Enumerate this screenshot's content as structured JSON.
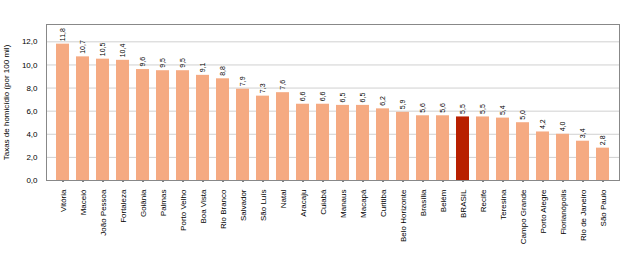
{
  "chart_data": {
    "type": "bar",
    "categories": [
      "Vitória",
      "Maceió",
      "João Pessoa",
      "Fortaleza",
      "Goiânia",
      "Palmas",
      "Porto Velho",
      "Boa Vista",
      "Rio Branco",
      "Salvador",
      "São Luís",
      "Natal",
      "Aracaju",
      "Cuiabá",
      "Manaus",
      "Macapá",
      "Curitiba",
      "Belo Horizonte",
      "Brasília",
      "Belém",
      "BRASIL",
      "Recife",
      "Teresina",
      "Campo Grande",
      "Porto Alegre",
      "Florianópolis",
      "Rio de Janeiro",
      "São Paulo"
    ],
    "values": [
      11.8,
      10.7,
      10.5,
      10.4,
      9.6,
      9.5,
      9.5,
      9.1,
      8.8,
      7.9,
      7.3,
      7.6,
      6.6,
      6.6,
      6.5,
      6.5,
      6.2,
      5.9,
      5.6,
      5.6,
      5.5,
      5.5,
      5.4,
      5.0,
      4.2,
      4.0,
      3.4,
      2.8
    ],
    "value_labels": [
      "11,8",
      "10,7",
      "10,5",
      "10,4",
      "9,6",
      "9,5",
      "9,5",
      "9,1",
      "8,8",
      "7,9",
      "7,3",
      "7,6",
      "6,6",
      "6,6",
      "6,5",
      "6,5",
      "6,2",
      "5,9",
      "5,6",
      "5,6",
      "5,5",
      "5,5",
      "5,4",
      "5,0",
      "4,2",
      "4,0",
      "3,4",
      "2,8"
    ],
    "colors": [
      "#f5aa82",
      "#f5aa82",
      "#f5aa82",
      "#f5aa82",
      "#f5aa82",
      "#f5aa82",
      "#f5aa82",
      "#f5aa82",
      "#f5aa82",
      "#f5aa82",
      "#f5aa82",
      "#f5aa82",
      "#f5aa82",
      "#f5aa82",
      "#f5aa82",
      "#f5aa82",
      "#f5aa82",
      "#f5aa82",
      "#f5aa82",
      "#f5aa82",
      "#b82000",
      "#f5aa82",
      "#f5aa82",
      "#f5aa82",
      "#f5aa82",
      "#f5aa82",
      "#f5aa82",
      "#f5aa82"
    ],
    "ylabel": "Taxas de homicídio (por 100 mil)",
    "ylim": [
      0,
      13.5
    ],
    "yticks": [
      {
        "value": 0.0,
        "label": "0,0"
      },
      {
        "value": 2.0,
        "label": "2,0"
      },
      {
        "value": 4.0,
        "label": "4,0"
      },
      {
        "value": 6.0,
        "label": "6,0"
      },
      {
        "value": 8.0,
        "label": "8,0"
      },
      {
        "value": 10.0,
        "label": "10,0"
      },
      {
        "value": 12.0,
        "label": "12,0"
      }
    ],
    "grid": true,
    "data_labels": true
  }
}
